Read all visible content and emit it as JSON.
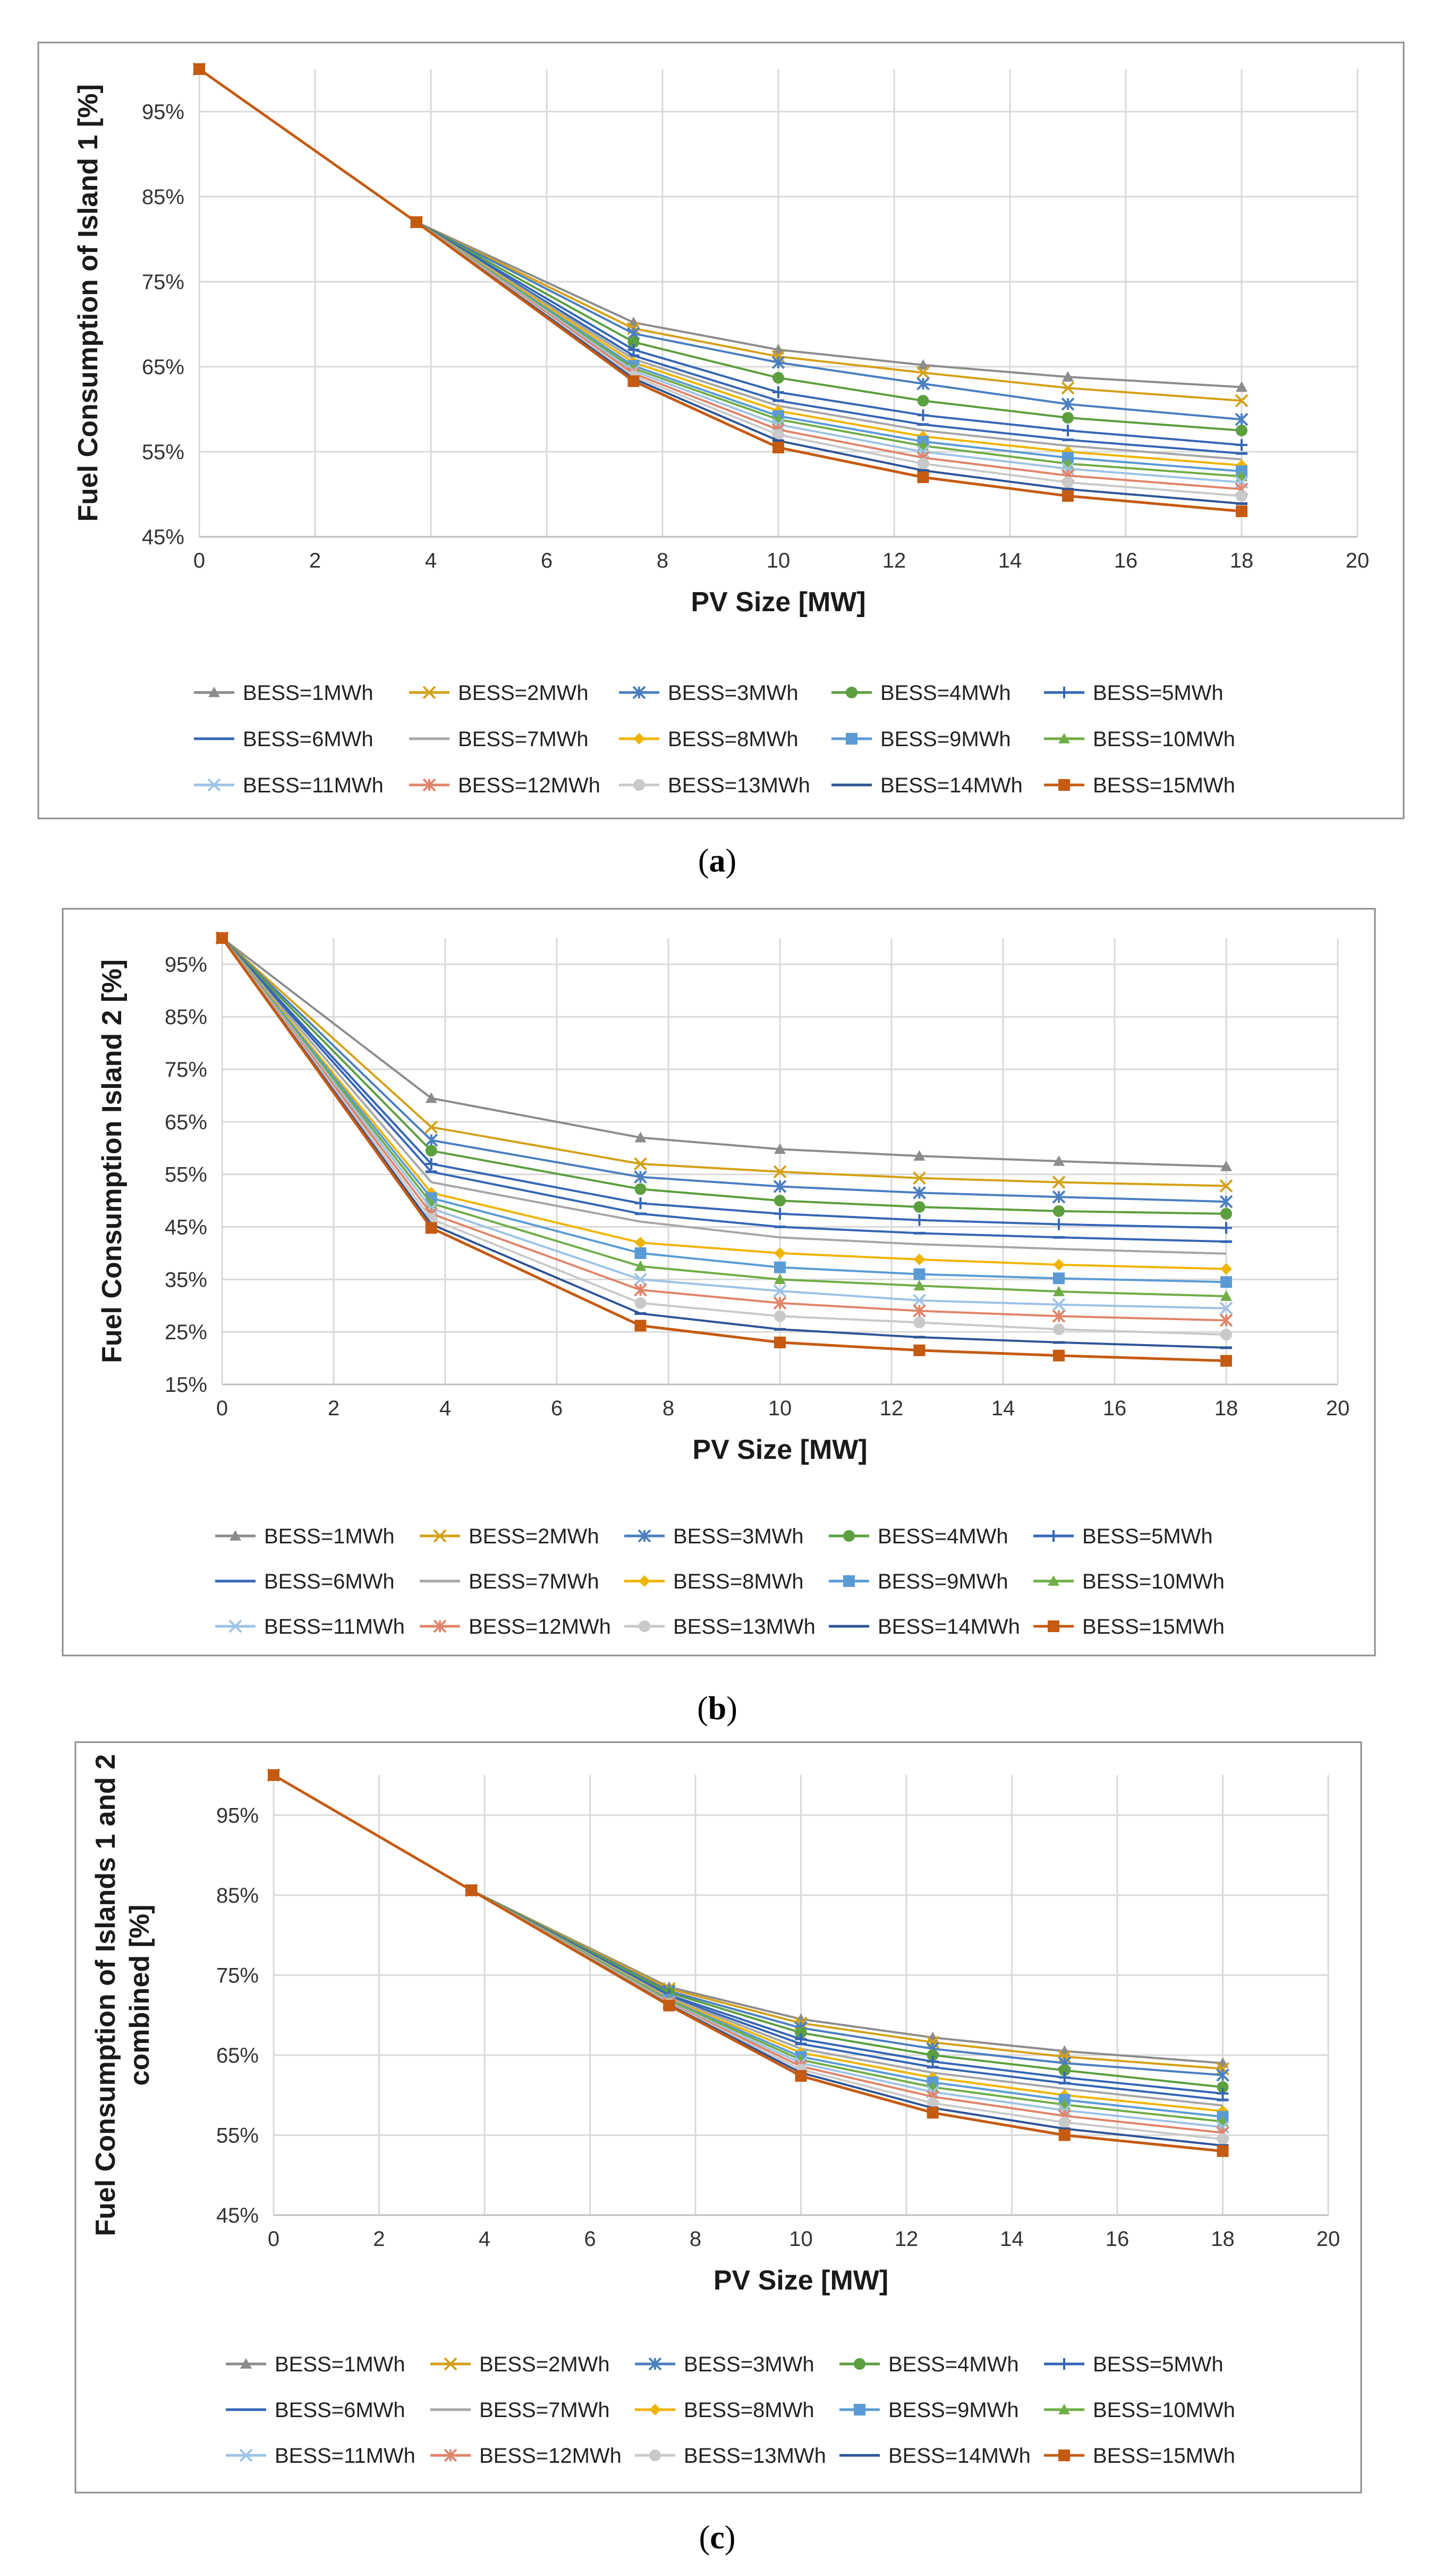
{
  "colors": {
    "BESS=1MWh": "#8c8c8c",
    "BESS=2MWh": "#d4a017",
    "BESS=3MWh": "#4a7fc0",
    "BESS=4MWh": "#5b9f3f",
    "BESS=5MWh": "#3566b5",
    "BESS=6MWh": "#3566b5",
    "BESS=7MWh": "#a6a6a6",
    "BESS=8MWh": "#f0b400",
    "BESS=9MWh": "#5b9bd5",
    "BESS=10MWh": "#70ad47",
    "BESS=11MWh": "#9dc3e6",
    "BESS=12MWh": "#e0846a",
    "BESS=13MWh": "#c9c9c9",
    "BESS=14MWh": "#2e5597",
    "BESS=15MWh": "#c55a11"
  },
  "markers": [
    "triangle",
    "x",
    "asterisk",
    "circle",
    "plus",
    "dash",
    "none",
    "diamond",
    "square",
    "triangle",
    "x",
    "asterisk",
    "circle",
    "dash",
    "square"
  ],
  "chart_data": [
    {
      "type": "line",
      "caption_paren_open": "(",
      "caption_letter": "a",
      "caption_paren_close": ")",
      "xlabel": "PV Size [MW]",
      "ylabel_lines": [
        "Fuel Consumption  of Island 1 [%]"
      ],
      "xlim": [
        0,
        20
      ],
      "ylim": [
        45,
        100
      ],
      "xticks": [
        0,
        2,
        4,
        6,
        8,
        10,
        12,
        14,
        16,
        18,
        20
      ],
      "yticks": [
        45,
        55,
        65,
        75,
        85,
        95
      ],
      "ytick_labels": [
        "45%",
        "55%",
        "65%",
        "75%",
        "85%",
        "95%"
      ],
      "x": [
        0,
        3.75,
        7.5,
        10,
        12.5,
        15,
        18
      ],
      "series": [
        {
          "name": "BESS=1MWh",
          "values": [
            100,
            82,
            70.2,
            67.0,
            65.2,
            63.8,
            62.6
          ]
        },
        {
          "name": "BESS=2MWh",
          "values": [
            100,
            82,
            69.5,
            66.2,
            64.3,
            62.5,
            61.0
          ]
        },
        {
          "name": "BESS=3MWh",
          "values": [
            100,
            82,
            68.9,
            65.5,
            63.0,
            60.6,
            58.8
          ]
        },
        {
          "name": "BESS=4MWh",
          "values": [
            100,
            82,
            67.9,
            63.7,
            61.0,
            59.0,
            57.5
          ]
        },
        {
          "name": "BESS=5MWh",
          "values": [
            100,
            82,
            67.0,
            62.0,
            59.3,
            57.5,
            55.8
          ]
        },
        {
          "name": "BESS=6MWh",
          "values": [
            100,
            82,
            66.3,
            61.0,
            58.2,
            56.4,
            54.8
          ]
        },
        {
          "name": "BESS=7MWh",
          "values": [
            100,
            82,
            65.9,
            60.4,
            57.5,
            55.7,
            54.1
          ]
        },
        {
          "name": "BESS=8MWh",
          "values": [
            100,
            82,
            65.5,
            59.8,
            56.8,
            55.0,
            53.4
          ]
        },
        {
          "name": "BESS=9MWh",
          "values": [
            100,
            82,
            65.1,
            59.2,
            56.2,
            54.3,
            52.7
          ]
        },
        {
          "name": "BESS=10MWh",
          "values": [
            100,
            82,
            64.8,
            58.8,
            55.7,
            53.6,
            52.1
          ]
        },
        {
          "name": "BESS=11MWh",
          "values": [
            100,
            82,
            64.5,
            58.2,
            55.0,
            53.0,
            51.4
          ]
        },
        {
          "name": "BESS=12MWh",
          "values": [
            100,
            82,
            64.2,
            57.6,
            54.3,
            52.2,
            50.6
          ]
        },
        {
          "name": "BESS=13MWh",
          "values": [
            100,
            82,
            63.9,
            57.0,
            53.6,
            51.4,
            49.8
          ]
        },
        {
          "name": "BESS=14MWh",
          "values": [
            100,
            82,
            63.6,
            56.3,
            52.8,
            50.6,
            48.9
          ]
        },
        {
          "name": "BESS=15MWh",
          "values": [
            100,
            82,
            63.3,
            55.5,
            52.0,
            49.8,
            48.0
          ]
        }
      ]
    },
    {
      "type": "line",
      "caption_paren_open": "(",
      "caption_letter": "b",
      "caption_paren_close": ")",
      "xlabel": "PV Size [MW]",
      "ylabel_lines": [
        "Fuel Consumption  Island 2 [%]"
      ],
      "xlim": [
        0,
        20
      ],
      "ylim": [
        15,
        100
      ],
      "xticks": [
        0,
        2,
        4,
        6,
        8,
        10,
        12,
        14,
        16,
        18,
        20
      ],
      "yticks": [
        15,
        25,
        35,
        45,
        55,
        65,
        75,
        85,
        95
      ],
      "ytick_labels": [
        "15%",
        "25%",
        "35%",
        "45%",
        "55%",
        "65%",
        "75%",
        "85%",
        "95%"
      ],
      "x": [
        0,
        3.75,
        7.5,
        10,
        12.5,
        15,
        18
      ],
      "series": [
        {
          "name": "BESS=1MWh",
          "values": [
            100,
            69.5,
            62.0,
            59.8,
            58.5,
            57.5,
            56.5
          ]
        },
        {
          "name": "BESS=2MWh",
          "values": [
            100,
            64.0,
            57.0,
            55.5,
            54.3,
            53.5,
            52.8
          ]
        },
        {
          "name": "BESS=3MWh",
          "values": [
            100,
            61.5,
            54.5,
            52.7,
            51.5,
            50.7,
            49.8
          ]
        },
        {
          "name": "BESS=4MWh",
          "values": [
            100,
            59.5,
            52.2,
            50.0,
            48.8,
            48.0,
            47.5
          ]
        },
        {
          "name": "BESS=5MWh",
          "values": [
            100,
            57.0,
            49.5,
            47.5,
            46.3,
            45.5,
            44.8
          ]
        },
        {
          "name": "BESS=6MWh",
          "values": [
            100,
            55.5,
            47.5,
            45.0,
            43.8,
            43.0,
            42.2
          ]
        },
        {
          "name": "BESS=7MWh",
          "values": [
            100,
            53.5,
            46.0,
            43.0,
            41.7,
            40.8,
            39.9
          ]
        },
        {
          "name": "BESS=8MWh",
          "values": [
            100,
            51.5,
            42.0,
            40.0,
            38.8,
            37.8,
            37.0
          ]
        },
        {
          "name": "BESS=9MWh",
          "values": [
            100,
            50.5,
            40.0,
            37.3,
            36.0,
            35.2,
            34.5
          ]
        },
        {
          "name": "BESS=10MWh",
          "values": [
            100,
            49.5,
            37.5,
            35.0,
            33.8,
            32.7,
            31.8
          ]
        },
        {
          "name": "BESS=11MWh",
          "values": [
            100,
            48.5,
            35.0,
            32.8,
            31.0,
            30.2,
            29.5
          ]
        },
        {
          "name": "BESS=12MWh",
          "values": [
            100,
            47.5,
            33.0,
            30.5,
            29.0,
            28.0,
            27.2
          ]
        },
        {
          "name": "BESS=13MWh",
          "values": [
            100,
            46.5,
            30.5,
            28.0,
            26.8,
            25.5,
            24.5
          ]
        },
        {
          "name": "BESS=14MWh",
          "values": [
            100,
            45.5,
            28.5,
            25.5,
            24.0,
            23.0,
            22.0
          ]
        },
        {
          "name": "BESS=15MWh",
          "values": [
            100,
            44.8,
            26.2,
            23.0,
            21.5,
            20.5,
            19.5
          ]
        }
      ]
    },
    {
      "type": "line",
      "caption_paren_open": "(",
      "caption_letter": "c",
      "caption_paren_close": ")",
      "xlabel": "PV Size [MW]",
      "ylabel_lines": [
        "Fuel Consumption  of Islands 1 and 2",
        "combined [%]"
      ],
      "xlim": [
        0,
        20
      ],
      "ylim": [
        45,
        100
      ],
      "xticks": [
        0,
        2,
        4,
        6,
        8,
        10,
        12,
        14,
        16,
        18,
        20
      ],
      "yticks": [
        45,
        55,
        65,
        75,
        85,
        95
      ],
      "ytick_labels": [
        "45%",
        "55%",
        "65%",
        "75%",
        "85%",
        "95%"
      ],
      "x": [
        0,
        3.75,
        7.5,
        10,
        12.5,
        15,
        18
      ],
      "series": [
        {
          "name": "BESS=1MWh",
          "values": [
            100,
            85.6,
            73.5,
            69.5,
            67.2,
            65.5,
            64.0
          ]
        },
        {
          "name": "BESS=2MWh",
          "values": [
            100,
            85.6,
            73.3,
            69.0,
            66.6,
            64.8,
            63.3
          ]
        },
        {
          "name": "BESS=3MWh",
          "values": [
            100,
            85.6,
            73.0,
            68.4,
            65.8,
            64.0,
            62.5
          ]
        },
        {
          "name": "BESS=4MWh",
          "values": [
            100,
            85.6,
            72.8,
            67.8,
            65.0,
            63.1,
            61.0
          ]
        },
        {
          "name": "BESS=5MWh",
          "values": [
            100,
            85.6,
            72.5,
            67.0,
            64.2,
            62.2,
            60.2
          ]
        },
        {
          "name": "BESS=6MWh",
          "values": [
            100,
            85.6,
            72.3,
            66.4,
            63.5,
            61.5,
            59.4
          ]
        },
        {
          "name": "BESS=7MWh",
          "values": [
            100,
            85.6,
            72.2,
            65.8,
            62.8,
            60.8,
            58.7
          ]
        },
        {
          "name": "BESS=8MWh",
          "values": [
            100,
            85.6,
            72.0,
            65.3,
            62.2,
            60.0,
            58.0
          ]
        },
        {
          "name": "BESS=9MWh",
          "values": [
            100,
            85.6,
            71.9,
            64.8,
            61.6,
            59.4,
            57.3
          ]
        },
        {
          "name": "BESS=10MWh",
          "values": [
            100,
            85.6,
            71.8,
            64.4,
            61.0,
            58.8,
            56.7
          ]
        },
        {
          "name": "BESS=11MWh",
          "values": [
            100,
            85.6,
            71.6,
            64.0,
            60.4,
            58.1,
            56.0
          ]
        },
        {
          "name": "BESS=12MWh",
          "values": [
            100,
            85.6,
            71.5,
            63.6,
            59.8,
            57.4,
            55.3
          ]
        },
        {
          "name": "BESS=13MWh",
          "values": [
            100,
            85.6,
            71.4,
            63.2,
            59.0,
            56.6,
            54.5
          ]
        },
        {
          "name": "BESS=14MWh",
          "values": [
            100,
            85.6,
            71.3,
            62.8,
            58.4,
            55.8,
            53.7
          ]
        },
        {
          "name": "BESS=15MWh",
          "values": [
            100,
            85.6,
            71.2,
            62.4,
            57.8,
            55.0,
            53.0
          ]
        }
      ]
    }
  ]
}
